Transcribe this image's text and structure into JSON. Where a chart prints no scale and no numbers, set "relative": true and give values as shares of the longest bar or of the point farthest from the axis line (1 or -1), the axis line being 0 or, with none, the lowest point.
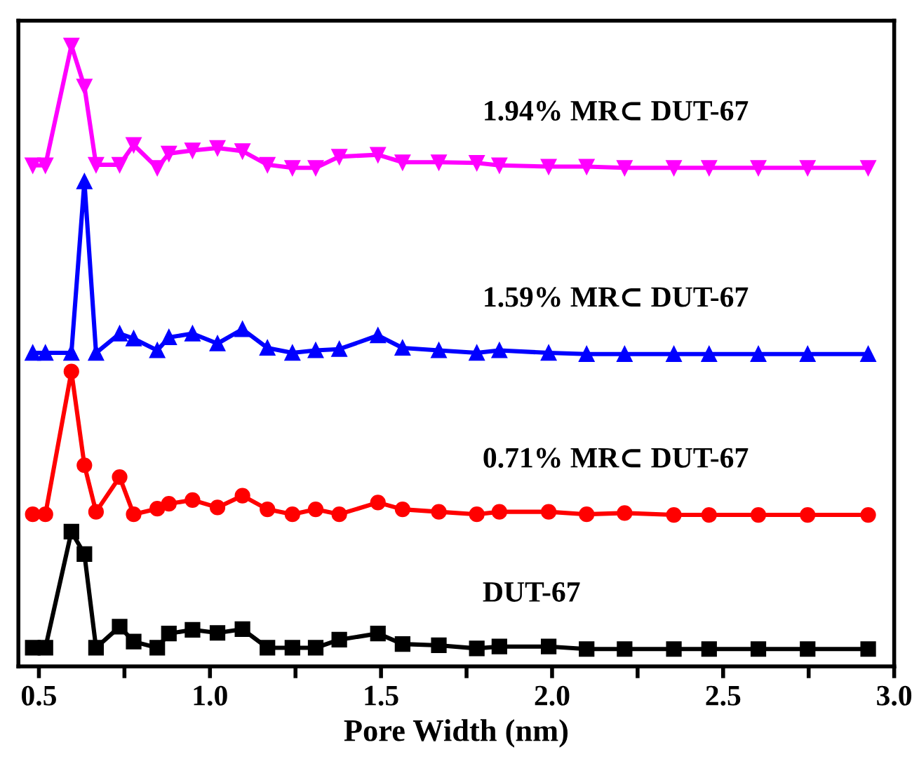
{
  "chart_data": {
    "type": "line",
    "relative": true,
    "xlabel": "Pore Width (nm)",
    "tick_labels": "x",
    "grid": false,
    "legend": false,
    "line_style": "solid",
    "x": [
      0.482,
      0.519,
      0.595,
      0.633,
      0.667,
      0.736,
      0.777,
      0.846,
      0.88,
      0.949,
      1.022,
      1.095,
      1.168,
      1.241,
      1.309,
      1.378,
      1.491,
      1.563,
      1.669,
      1.78,
      1.846,
      1.99,
      2.101,
      2.212,
      2.356,
      2.459,
      2.603,
      2.747,
      2.924
    ],
    "xlim": [
      0.44,
      3.0
    ],
    "xticks": [
      0.5,
      {
        "value": 0.75,
        "label": null
      },
      {
        "value": 1,
        "label": "1.0"
      },
      {
        "value": 1.25,
        "label": null
      },
      1.5,
      {
        "value": 1.75,
        "label": null
      },
      {
        "value": 2,
        "label": "2.0"
      },
      {
        "value": 2.25,
        "label": null
      },
      2.5,
      {
        "value": 2.75,
        "label": null
      },
      {
        "value": 3,
        "label": "3.0"
      }
    ],
    "series": [
      {
        "name": "DUT-67",
        "color": "#000000",
        "marker": "square",
        "values": [
          0.03,
          0.03,
          0.217,
          0.181,
          0.03,
          0.064,
          0.04,
          0.03,
          0.053,
          0.059,
          0.054,
          0.06,
          0.03,
          0.03,
          0.03,
          0.043,
          0.053,
          0.036,
          0.034,
          0.029,
          0.032,
          0.032,
          0.028,
          0.028,
          0.028,
          0.028,
          0.028,
          0.028,
          0.028
        ]
      },
      {
        "name": "0.71% MR⊂ DUT-67",
        "color": "#ff0000",
        "marker": "circle",
        "values": [
          0.245,
          0.245,
          0.475,
          0.324,
          0.249,
          0.305,
          0.245,
          0.254,
          0.262,
          0.268,
          0.256,
          0.275,
          0.253,
          0.245,
          0.253,
          0.245,
          0.264,
          0.253,
          0.249,
          0.245,
          0.249,
          0.249,
          0.245,
          0.247,
          0.244,
          0.244,
          0.244,
          0.244,
          0.244
        ]
      },
      {
        "name": "1.59% MR⊂ DUT-67",
        "color": "#0000ff",
        "marker": "triangle",
        "values": [
          0.505,
          0.505,
          0.505,
          0.781,
          0.505,
          0.536,
          0.528,
          0.509,
          0.53,
          0.536,
          0.52,
          0.543,
          0.513,
          0.505,
          0.509,
          0.511,
          0.533,
          0.513,
          0.509,
          0.505,
          0.509,
          0.505,
          0.503,
          0.503,
          0.503,
          0.503,
          0.503,
          0.503,
          0.503
        ]
      },
      {
        "name": "1.94% MR⊂ DUT-67",
        "color": "#ff00ff",
        "marker": "triangle_down",
        "values": [
          0.807,
          0.807,
          1.0,
          0.934,
          0.808,
          0.808,
          0.84,
          0.803,
          0.826,
          0.831,
          0.835,
          0.83,
          0.808,
          0.803,
          0.803,
          0.821,
          0.824,
          0.812,
          0.812,
          0.811,
          0.807,
          0.805,
          0.805,
          0.803,
          0.803,
          0.803,
          0.803,
          0.803,
          0.803
        ]
      }
    ]
  }
}
